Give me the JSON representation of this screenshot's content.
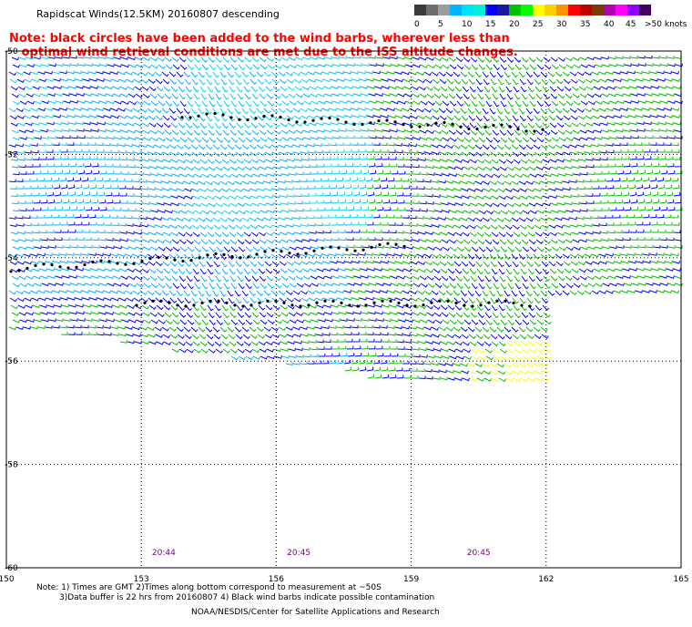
{
  "title": "Rapidscat Winds(12.5KM) 20160807 descending",
  "warning": {
    "line1": "Note: black circles have been added to the wind barbs, wherever less than",
    "line2": "optimal wind retrieval conditions are met due to the ISS altitude changes."
  },
  "legend": {
    "colors": [
      "#3a3a3a",
      "#6e6e6e",
      "#9c9c9c",
      "#00b4ff",
      "#00e0ff",
      "#00f0d8",
      "#0000ff",
      "#1a1aa0",
      "#00c000",
      "#00ff00",
      "#ffff00",
      "#ffd000",
      "#ff9000",
      "#ff0000",
      "#c00000",
      "#7a3a00",
      "#b000b0",
      "#ff00ff",
      "#9000ff",
      "#400060"
    ],
    "labels": [
      "0",
      "5",
      "10",
      "15",
      "20",
      "25",
      "30",
      "35",
      "40",
      "45",
      ">50 knots"
    ]
  },
  "axes": {
    "lon_labels": [
      "150",
      "153",
      "156",
      "159",
      "162",
      "165"
    ],
    "lat_labels": [
      "-50",
      "-52",
      "-54",
      "-56",
      "-58",
      "-60"
    ]
  },
  "times": [
    "20:44",
    "20:45",
    "20:45"
  ],
  "notes": {
    "line1": "Note: 1) Times are GMT 2)Times along bottom correspond to measurement at ~50S",
    "line2": "3)Data buffer is 22 hrs from 20160807 4) Black wind barbs indicate possible contamination",
    "credit": "NOAA/NESDIS/Center for Satellite Applications and Research"
  },
  "map_data": {
    "lon_range": [
      150,
      165
    ],
    "lat_range": [
      -60,
      -50
    ],
    "barb_colors": {
      "calm": "#000000",
      "light": "#00b4ff",
      "cyan": "#00d8f0",
      "moderate": "#0000ff",
      "strong": "#00c000",
      "gale": "#ffff00"
    }
  }
}
